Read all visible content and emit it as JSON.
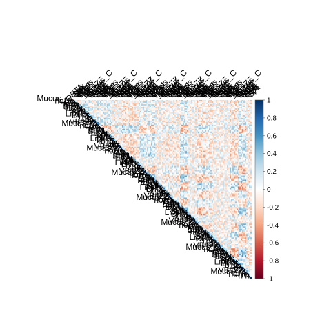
{
  "chart_data": {
    "type": "heatmap",
    "layout": "upper-triangle correlation matrix (corrplot, method=color)",
    "title": "",
    "xlabel": "",
    "ylabel": "",
    "variable_count": 130,
    "value_range": [
      -1,
      1
    ],
    "diagonal_value": 1,
    "grid": false,
    "legend_position": "right",
    "colorbar": {
      "ticks": [
        1,
        0.8,
        0.6,
        0.4,
        0.2,
        0,
        -0.2,
        -0.4,
        -0.6,
        -0.8,
        -1
      ],
      "tick_labels": [
        "1",
        "0.8",
        "0.6",
        "0.4",
        "0.2",
        "0",
        "-0.2",
        "-0.4",
        "-0.6",
        "-0.8",
        "-1"
      ],
      "colors": [
        "#67001F",
        "#B2182B",
        "#D6604D",
        "#F4A582",
        "#FDDBC7",
        "#FFFFFF",
        "#D1E5F0",
        "#92C5DE",
        "#4393C3",
        "#2166AC",
        "#053061"
      ]
    },
    "legible_labels": [
      "Mucus_C",
      "ETA",
      "noHe",
      "n n",
      "tem",
      "EtAt",
      "SpM",
      "ETA",
      "Spl",
      "Spli",
      "Spli",
      "Lipins",
      "Cripi",
      "n_5",
      "ng",
      "_P",
      "ures",
      "VB_ZZ"
    ]
  }
}
